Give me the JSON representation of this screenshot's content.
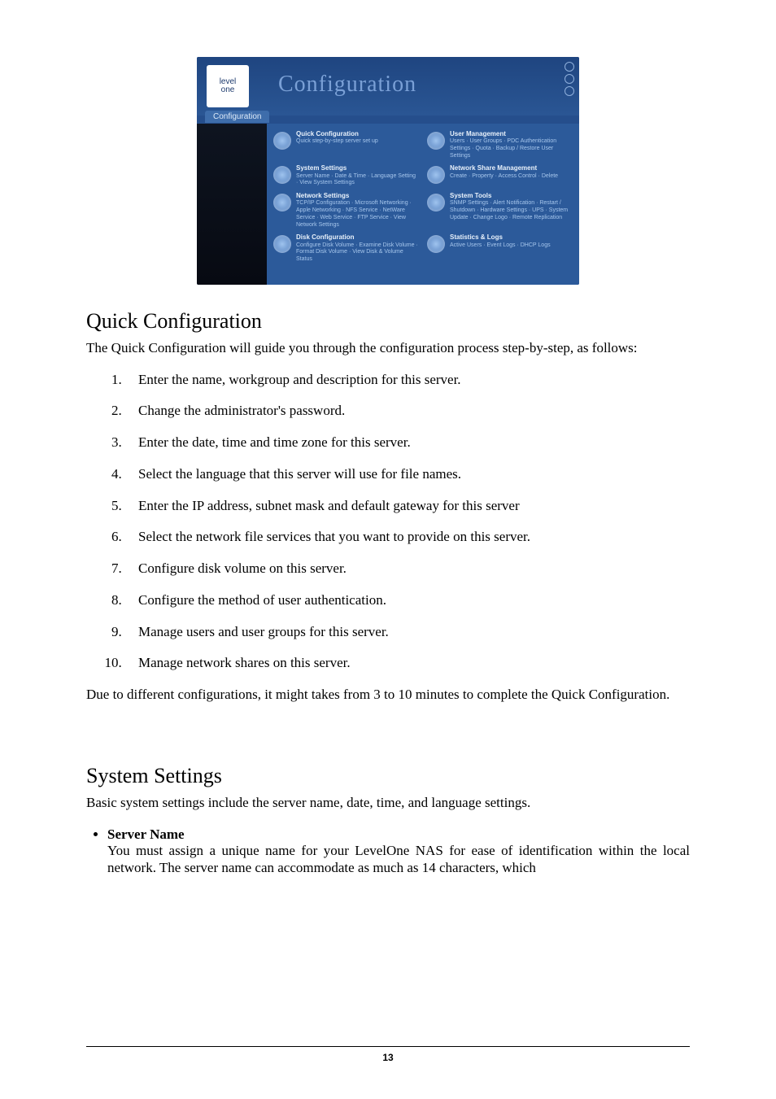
{
  "screenshot": {
    "brand_top": "level",
    "brand_bottom": "one",
    "header_title": "Configuration",
    "tab_label": "Configuration",
    "tiles": [
      [
        {
          "title": "Quick Configuration",
          "desc": "Quick step-by-step server set up"
        },
        {
          "title": "User Management",
          "desc": "Users · User Groups · PDC Authentication Settings · Quota · Backup / Restore User Settings"
        }
      ],
      [
        {
          "title": "System Settings",
          "desc": "Server Name · Date & Time · Language Setting · View System Settings"
        },
        {
          "title": "Network Share Management",
          "desc": "Create · Property · Access Control · Delete"
        }
      ],
      [
        {
          "title": "Network Settings",
          "desc": "TCP/IP Configuration · Microsoft Networking · Apple Networking · NFS Service · NetWare Service · Web Service · FTP Service · View Network Settings"
        },
        {
          "title": "System Tools",
          "desc": "SNMP Settings · Alert Notification · Restart / Shutdown · Hardware Settings · UPS · System Update · Change Logo · Remote Replication"
        }
      ],
      [
        {
          "title": "Disk Configuration",
          "desc": "Configure Disk Volume · Examine Disk Volume · Format Disk Volume · View Disk & Volume Status"
        },
        {
          "title": "Statistics & Logs",
          "desc": "Active Users · Event Logs · DHCP Logs"
        }
      ]
    ]
  },
  "sections": {
    "quick": {
      "heading": "Quick Configuration",
      "lead": "The Quick Configuration will guide you through the configuration process step-by-step, as follows:",
      "steps": [
        "Enter the name, workgroup and description for this server.",
        "Change the administrator's password.",
        "Enter the date, time and time zone for this server.",
        "Select the language that this server will use for file names.",
        "Enter the IP address, subnet mask and default gateway for this server",
        "Select the network file services that you want to provide on this server.",
        "Configure disk volume on this server.",
        "Configure the method of user authentication.",
        "Manage users and user groups for this server.",
        "Manage network shares on this server."
      ],
      "closing": "Due to different configurations, it might takes from 3 to 10 minutes to complete the Quick Configuration."
    },
    "system": {
      "heading": "System Settings",
      "lead": "Basic system settings include the server name, date, time, and language settings.",
      "bullet_title": "Server Name",
      "bullet_body": "You must assign a unique name for your LevelOne NAS for ease of identification within the local network.  The server name can accommodate as much as 14 characters, which"
    }
  },
  "page_number": "13"
}
